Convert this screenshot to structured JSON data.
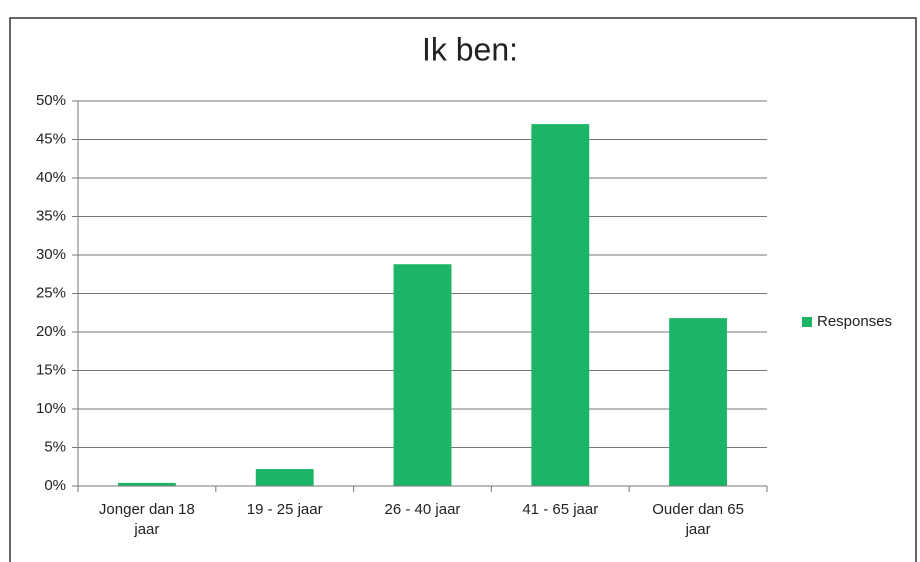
{
  "chart_data": {
    "type": "bar",
    "title": "Ik ben:",
    "categories": [
      "Jonger dan 18 jaar",
      "19 - 25 jaar",
      "26 - 40 jaar",
      "41 - 65 jaar",
      "Ouder dan 65 jaar"
    ],
    "series": [
      {
        "name": "Responses",
        "color": "#1cb466",
        "values": [
          0.4,
          2.2,
          28.8,
          47,
          21.8
        ]
      }
    ],
    "ylim": [
      0,
      50
    ],
    "yticks": [
      {
        "value": 0,
        "label": "0%"
      },
      {
        "value": 5,
        "label": "5%"
      },
      {
        "value": 10,
        "label": "10%"
      },
      {
        "value": 15,
        "label": "15%"
      },
      {
        "value": 20,
        "label": "20%"
      },
      {
        "value": 25,
        "label": "25%"
      },
      {
        "value": 30,
        "label": "30%"
      },
      {
        "value": 35,
        "label": "35%"
      },
      {
        "value": 40,
        "label": "40%"
      },
      {
        "value": 45,
        "label": "45%"
      },
      {
        "value": 50,
        "label": "50%"
      }
    ],
    "grid": true,
    "legend": "right"
  }
}
